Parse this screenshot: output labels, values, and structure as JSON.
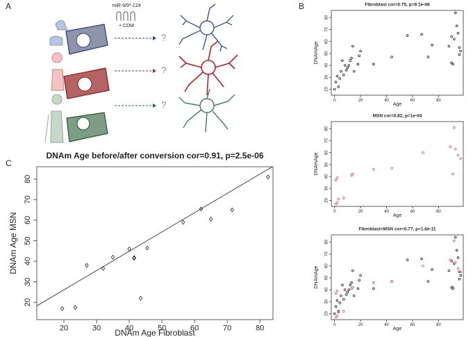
{
  "panel_labels": [
    "A",
    "B",
    "C"
  ],
  "diagram": {
    "treatment": "miR-9/9*-124",
    "medium": "+ CDM",
    "outcomes": [
      "?",
      "?",
      "?"
    ]
  },
  "chart_data": [
    {
      "type": "scatter",
      "title": "Fibroblast cor=0.75, p=9.1e-08",
      "x_label": "Age",
      "y_label": "DNAmAge",
      "xlim": [
        -2.5,
        99
      ],
      "ylim": [
        15,
        86
      ],
      "xticks": [
        0,
        20,
        40,
        60,
        80
      ],
      "yticks": [
        20,
        30,
        40,
        50,
        60,
        70,
        80
      ],
      "marker": "circle",
      "series": [
        {
          "color": "#222222",
          "x": [
            0,
            1,
            2,
            3,
            4,
            5,
            6,
            7,
            8,
            9,
            10,
            11,
            12,
            13,
            14,
            15,
            18,
            19,
            20,
            30,
            44,
            56,
            67,
            72,
            75,
            88,
            90,
            90,
            91,
            92,
            93,
            94,
            95,
            96,
            96,
            97
          ],
          "y": [
            20,
            26,
            31,
            22,
            29,
            35,
            44,
            32,
            40,
            36,
            38,
            40,
            44,
            46,
            56,
            35,
            41,
            48,
            52,
            41,
            47,
            65,
            66,
            47,
            57,
            56,
            64,
            42,
            41,
            62,
            84,
            73,
            67,
            55,
            49,
            52
          ]
        }
      ]
    },
    {
      "type": "scatter",
      "title": "MSN cor=0.82, p=1e-04",
      "x_label": "Age",
      "y_label": "DNAmAge",
      "xlim": [
        -2.5,
        99
      ],
      "ylim": [
        15,
        86
      ],
      "xticks": [
        0,
        20,
        40,
        60,
        80
      ],
      "yticks": [
        20,
        30,
        40,
        50,
        60,
        70,
        80
      ],
      "marker": "circle",
      "series": [
        {
          "color": "#e06060",
          "x": [
            1,
            2,
            3,
            1,
            2,
            7,
            13,
            14,
            30,
            44,
            68,
            89,
            91,
            92,
            93,
            95,
            97
          ],
          "y": [
            17,
            18,
            21,
            37,
            39,
            22,
            41,
            42,
            46,
            47,
            60,
            65,
            42,
            81,
            63,
            58,
            55
          ]
        }
      ]
    },
    {
      "type": "scatter",
      "title": "Fibroblast+MSN cor=0.77, p=1.6e-11",
      "x_label": "Age",
      "y_label": "DNAmAge",
      "xlim": [
        -2.5,
        99
      ],
      "ylim": [
        15,
        86
      ],
      "xticks": [
        0,
        20,
        40,
        60,
        80
      ],
      "yticks": [
        20,
        30,
        40,
        50,
        60,
        70,
        80
      ],
      "marker": "circle",
      "series": [
        {
          "color": "#222222",
          "x": [
            0,
            1,
            2,
            3,
            4,
            5,
            6,
            7,
            8,
            9,
            10,
            11,
            12,
            13,
            14,
            15,
            18,
            19,
            20,
            30,
            44,
            56,
            67,
            72,
            75,
            88,
            90,
            90,
            91,
            92,
            93,
            94,
            95,
            96,
            96,
            97
          ],
          "y": [
            20,
            26,
            31,
            22,
            29,
            35,
            44,
            32,
            40,
            36,
            38,
            40,
            44,
            46,
            56,
            35,
            41,
            48,
            52,
            41,
            47,
            65,
            66,
            47,
            57,
            56,
            64,
            42,
            41,
            62,
            84,
            73,
            67,
            55,
            49,
            52
          ]
        },
        {
          "color": "#e06060",
          "x": [
            1,
            2,
            3,
            1,
            2,
            7,
            13,
            14,
            30,
            44,
            68,
            89,
            91,
            92,
            93,
            95,
            97
          ],
          "y": [
            17,
            18,
            21,
            37,
            39,
            22,
            41,
            42,
            46,
            47,
            60,
            65,
            42,
            81,
            63,
            58,
            55
          ]
        }
      ]
    },
    {
      "type": "scatter",
      "title": "DNAm Age before/after conversion cor=0.91, p=2.5e-06",
      "x_label": "DNAm Age Fibroblast",
      "y_label": "DNAm Age MSN",
      "xlim": [
        11.7,
        84
      ],
      "ylim": [
        11.6,
        86
      ],
      "xticks": [
        20,
        30,
        40,
        50,
        60,
        70,
        80
      ],
      "yticks": [
        20,
        30,
        40,
        50,
        60,
        70,
        80
      ],
      "marker": "diamond",
      "series": [
        {
          "color": "#222222",
          "x": [
            19.5,
            23.5,
            27,
            32,
            35,
            40,
            41.5,
            41.5,
            43.5,
            45.5,
            56.5,
            62,
            65,
            71.5,
            82.5
          ],
          "y": [
            17,
            17.5,
            38,
            36.5,
            42,
            46,
            41.5,
            41.8,
            22,
            46.5,
            59,
            65.5,
            60.5,
            65,
            81
          ]
        }
      ],
      "trend_line": {
        "x": [
          11.7,
          84
        ],
        "y": [
          18.3,
          86.2
        ]
      }
    }
  ]
}
